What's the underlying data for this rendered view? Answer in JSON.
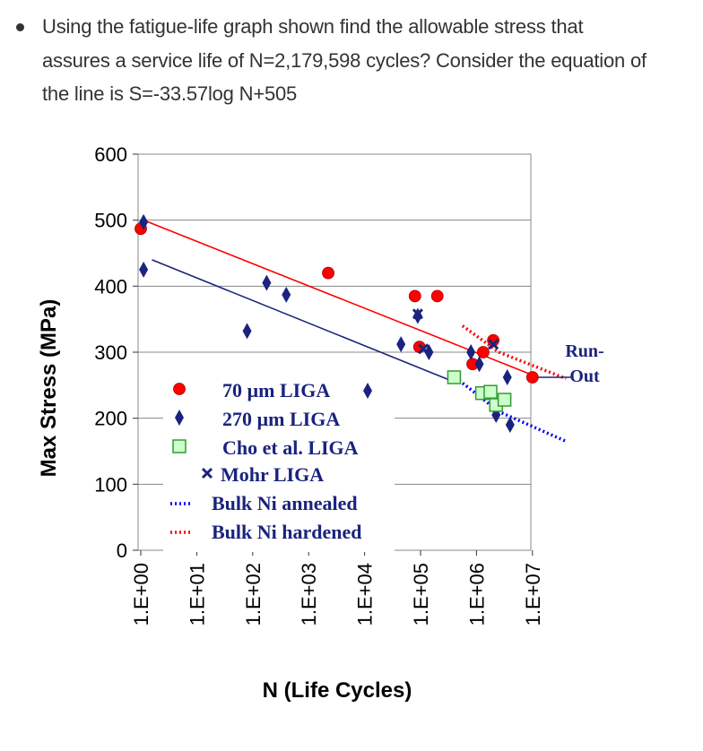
{
  "question": {
    "line1": "Using the fatigue-life graph shown find the allowable stress that",
    "line2": "assures a service life of N=2,179,598 cycles? Consider the equation of",
    "line3": "the line is S=-33.57log N+505"
  },
  "colors": {
    "red": "#ff0000",
    "navy": "#1a237e",
    "green_fill": "#ccffcc",
    "green_stroke": "#339933",
    "blue_dot": "#0000ff"
  },
  "chart_data": {
    "type": "scatter",
    "title": "",
    "xlabel": "N (Life Cycles)",
    "ylabel": "Max Stress (MPa)",
    "x_scale": "log10",
    "xlim": [
      0,
      7.3
    ],
    "ylim": [
      0,
      600
    ],
    "x_ticks": [
      "1.E+00",
      "1.E+01",
      "1.E+02",
      "1.E+03",
      "1.E+04",
      "1.E+05",
      "1.E+06",
      "1.E+07"
    ],
    "y_ticks": [
      "0",
      "100",
      "200",
      "300",
      "400",
      "500",
      "600"
    ],
    "series": [
      {
        "name": "70 µm LIGA",
        "marker": "circle",
        "points": [
          [
            0.0,
            487
          ],
          [
            3.35,
            420
          ],
          [
            4.9,
            385
          ],
          [
            5.3,
            385
          ],
          [
            4.98,
            308
          ],
          [
            5.93,
            282
          ],
          [
            6.12,
            300
          ],
          [
            6.3,
            318
          ],
          [
            7.0,
            262
          ]
        ]
      },
      {
        "name": "270 µm LIGA",
        "marker": "diamond",
        "points": [
          [
            0.05,
            497
          ],
          [
            0.05,
            425
          ],
          [
            1.9,
            332
          ],
          [
            2.25,
            405
          ],
          [
            2.6,
            387
          ],
          [
            4.65,
            312
          ],
          [
            4.95,
            355
          ],
          [
            5.15,
            300
          ],
          [
            5.9,
            300
          ],
          [
            6.05,
            282
          ],
          [
            6.35,
            205
          ],
          [
            6.55,
            262
          ],
          [
            6.6,
            190
          ]
        ]
      },
      {
        "name": "Cho et al. LIGA",
        "marker": "square",
        "points": [
          [
            5.6,
            262
          ],
          [
            6.1,
            238
          ],
          [
            6.25,
            240
          ],
          [
            6.35,
            220
          ],
          [
            6.5,
            228
          ]
        ]
      },
      {
        "name": "Mohr LIGA",
        "marker": "x",
        "points": [
          [
            4.95,
            358
          ],
          [
            5.05,
            305
          ],
          [
            6.3,
            312
          ]
        ]
      }
    ],
    "lines": [
      {
        "name": "70 µm LIGA fit",
        "color": "red",
        "style": "solid",
        "points": [
          [
            0.05,
            500
          ],
          [
            7.1,
            262
          ]
        ]
      },
      {
        "name": "270 µm LIGA fit",
        "color": "navy",
        "style": "solid",
        "points": [
          [
            0.2,
            440
          ],
          [
            5.6,
            255
          ]
        ]
      },
      {
        "name": "Bulk Ni annealed",
        "color": "blue",
        "style": "dotted",
        "points": [
          [
            5.5,
            270
          ],
          [
            6.4,
            210
          ],
          [
            7.6,
            165
          ]
        ]
      },
      {
        "name": "Bulk Ni hardened",
        "color": "red",
        "style": "dotted",
        "points": [
          [
            5.75,
            340
          ],
          [
            6.4,
            300
          ],
          [
            7.6,
            260
          ]
        ]
      },
      {
        "name": "Run-out",
        "color": "navy",
        "style": "solid",
        "points": [
          [
            7.0,
            262
          ],
          [
            7.7,
            262
          ]
        ]
      }
    ],
    "legend": {
      "placement": "lower-middle",
      "entries": [
        "70 µm LIGA",
        "270 µm LIGA",
        "Cho et al. LIGA",
        "Mohr LIGA",
        "Bulk Ni annealed",
        "Bulk Ni hardened"
      ]
    },
    "annotations": [
      "Run-",
      "Out"
    ]
  }
}
